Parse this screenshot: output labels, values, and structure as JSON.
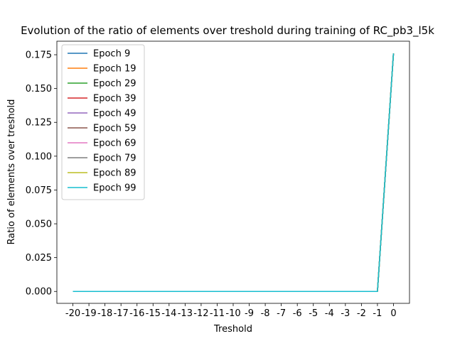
{
  "chart_data": {
    "type": "line",
    "title": "Evolution of the ratio of elements over treshold during training of RC_pb3_l5k",
    "xlabel": "Treshold",
    "ylabel": "Ratio of elements over treshold",
    "x": [
      -20,
      -19,
      -18,
      -17,
      -16,
      -15,
      -14,
      -13,
      -12,
      -11,
      -10,
      -9,
      -8,
      -7,
      -6,
      -5,
      -4,
      -3,
      -2,
      -1,
      0
    ],
    "x_tick_labels": [
      "-20",
      "-19",
      "-18",
      "-17",
      "-16",
      "-15",
      "-14",
      "-13",
      "-12",
      "-11",
      "-10",
      "-9",
      "-8",
      "-7",
      "-6",
      "-5",
      "-4",
      "-3",
      "-2",
      "-1",
      "0"
    ],
    "y_ticks": [
      "0.000",
      "0.025",
      "0.050",
      "0.075",
      "0.100",
      "0.125",
      "0.150",
      "0.175"
    ],
    "xlim": [
      -21,
      1
    ],
    "ylim": [
      -0.0088,
      0.185
    ],
    "grid": false,
    "legend_position": "upper-left",
    "series": [
      {
        "name": "Epoch 9",
        "color": "#1f77b4",
        "values": [
          0,
          0,
          0,
          0,
          0,
          0,
          0,
          0,
          0,
          0,
          0,
          0,
          0,
          0,
          0,
          0,
          0,
          0,
          0,
          0,
          0.176
        ]
      },
      {
        "name": "Epoch 19",
        "color": "#ff7f0e",
        "values": [
          0,
          0,
          0,
          0,
          0,
          0,
          0,
          0,
          0,
          0,
          0,
          0,
          0,
          0,
          0,
          0,
          0,
          0,
          0,
          0,
          0.176
        ]
      },
      {
        "name": "Epoch 29",
        "color": "#2ca02c",
        "values": [
          0,
          0,
          0,
          0,
          0,
          0,
          0,
          0,
          0,
          0,
          0,
          0,
          0,
          0,
          0,
          0,
          0,
          0,
          0,
          0,
          0.176
        ]
      },
      {
        "name": "Epoch 39",
        "color": "#d62728",
        "values": [
          0,
          0,
          0,
          0,
          0,
          0,
          0,
          0,
          0,
          0,
          0,
          0,
          0,
          0,
          0,
          0,
          0,
          0,
          0,
          0,
          0.176
        ]
      },
      {
        "name": "Epoch 49",
        "color": "#9467bd",
        "values": [
          0,
          0,
          0,
          0,
          0,
          0,
          0,
          0,
          0,
          0,
          0,
          0,
          0,
          0,
          0,
          0,
          0,
          0,
          0,
          0,
          0.176
        ]
      },
      {
        "name": "Epoch 59",
        "color": "#8c564b",
        "values": [
          0,
          0,
          0,
          0,
          0,
          0,
          0,
          0,
          0,
          0,
          0,
          0,
          0,
          0,
          0,
          0,
          0,
          0,
          0,
          0,
          0.176
        ]
      },
      {
        "name": "Epoch 69",
        "color": "#e377c2",
        "values": [
          0,
          0,
          0,
          0,
          0,
          0,
          0,
          0,
          0,
          0,
          0,
          0,
          0,
          0,
          0,
          0,
          0,
          0,
          0,
          0,
          0.176
        ]
      },
      {
        "name": "Epoch 79",
        "color": "#7f7f7f",
        "values": [
          0,
          0,
          0,
          0,
          0,
          0,
          0,
          0,
          0,
          0,
          0,
          0,
          0,
          0,
          0,
          0,
          0,
          0,
          0,
          0,
          0.176
        ]
      },
      {
        "name": "Epoch 89",
        "color": "#bcbd22",
        "values": [
          0,
          0,
          0,
          0,
          0,
          0,
          0,
          0,
          0,
          0,
          0,
          0,
          0,
          0,
          0,
          0,
          0,
          0,
          0,
          0,
          0.176
        ]
      },
      {
        "name": "Epoch 99",
        "color": "#17becf",
        "values": [
          0,
          0,
          0,
          0,
          0,
          0,
          0,
          0,
          0,
          0,
          0,
          0,
          0,
          0,
          0,
          0,
          0,
          0,
          0,
          0,
          0.176
        ]
      }
    ]
  }
}
